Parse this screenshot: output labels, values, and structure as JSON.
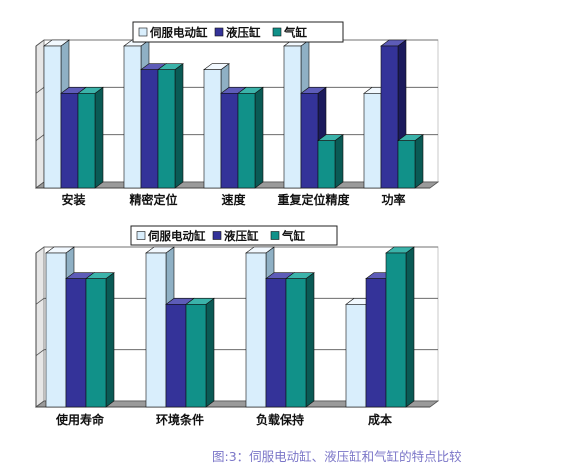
{
  "caption": "图:3：伺服电动缸、液压缸和气缸的特点比较",
  "colors": {
    "series": [
      "#d9eefc",
      "#343399",
      "#119189"
    ],
    "side": [
      "#8fb0c4",
      "#1b1a5c",
      "#0a5a55"
    ],
    "top": [
      "#f2f9ff",
      "#5d5cb8",
      "#3bb3aa"
    ],
    "background": "#ffffff",
    "floor": "#8a8a8a",
    "wall": "#c8c8c8"
  },
  "chart_data": [
    {
      "type": "bar",
      "categories": [
        "安装",
        "精密定位",
        "速度",
        "重复定位精度",
        "功率"
      ],
      "series": [
        {
          "name": "伺服电动缸",
          "values": [
            3,
            3,
            2.5,
            3,
            2
          ]
        },
        {
          "name": "液压缸",
          "values": [
            2,
            2.5,
            2,
            2,
            3
          ]
        },
        {
          "name": "气缸",
          "values": [
            2,
            2.5,
            2,
            1,
            1
          ]
        }
      ],
      "ylim": [
        0,
        3
      ],
      "grid": true,
      "legend_position": "top"
    },
    {
      "type": "bar",
      "categories": [
        "使用寿命",
        "环境条件",
        "负载保持",
        "成本"
      ],
      "series": [
        {
          "name": "伺服电动缸",
          "values": [
            3,
            3,
            3,
            2
          ]
        },
        {
          "name": "液压缸",
          "values": [
            2.5,
            2,
            2.5,
            2.5
          ]
        },
        {
          "name": "气缸",
          "values": [
            2.5,
            2,
            2.5,
            3
          ]
        }
      ],
      "ylim": [
        0,
        3
      ],
      "grid": true,
      "legend_position": "top"
    }
  ]
}
